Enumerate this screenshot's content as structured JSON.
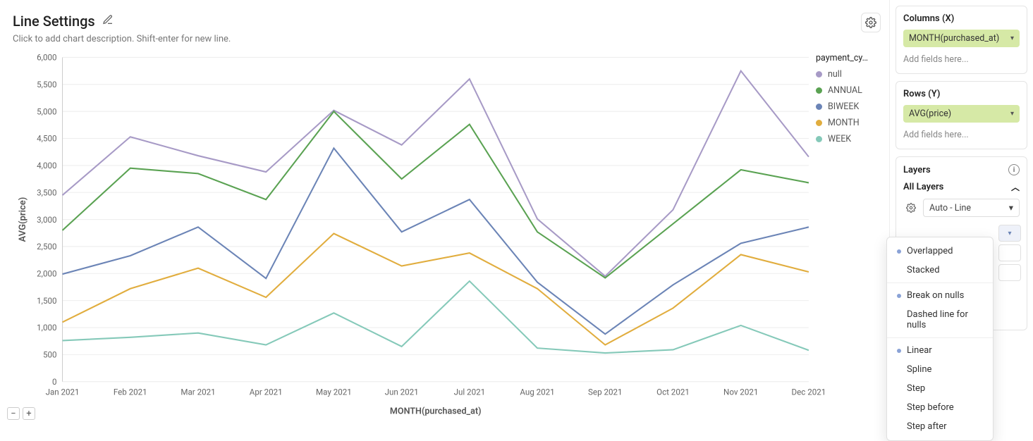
{
  "header": {
    "title": "Line Settings",
    "description": "Click to add chart description. Shift-enter for new line."
  },
  "chart": {
    "type": "line",
    "xlabel": "MONTH(purchased_at)",
    "ylabel": "AVG(price)",
    "categories": [
      "Jan 2021",
      "Feb 2021",
      "Mar 2021",
      "Apr 2021",
      "May 2021",
      "Jun 2021",
      "Jul 2021",
      "Aug 2021",
      "Sep 2021",
      "Oct 2021",
      "Nov 2021",
      "Dec 2021"
    ],
    "ylim": [
      0,
      6000
    ],
    "ytick_step": 500,
    "grid_color": "#eeeeee",
    "background_color": "#ffffff",
    "legend_title": "payment_cy…",
    "series": [
      {
        "name": "null",
        "color": "#a79ac6",
        "values": [
          3450,
          4530,
          4180,
          3880,
          5020,
          4380,
          5600,
          3010,
          1950,
          3180,
          5750,
          4160
        ]
      },
      {
        "name": "ANNUAL",
        "color": "#5aa252",
        "values": [
          2800,
          3950,
          3850,
          3370,
          5000,
          3750,
          4760,
          2770,
          1920,
          2920,
          3920,
          3680
        ]
      },
      {
        "name": "BIWEEK",
        "color": "#6b84b6",
        "values": [
          1990,
          2330,
          2860,
          1910,
          4320,
          2770,
          3370,
          1840,
          880,
          1790,
          2560,
          2860
        ]
      },
      {
        "name": "MONTH",
        "color": "#e1ad3e",
        "values": [
          1100,
          1720,
          2100,
          1560,
          2740,
          2140,
          2380,
          1720,
          680,
          1360,
          2350,
          2030
        ]
      },
      {
        "name": "WEEK",
        "color": "#85c9b9",
        "values": [
          760,
          820,
          900,
          680,
          1270,
          650,
          1860,
          620,
          530,
          590,
          1040,
          580
        ]
      }
    ]
  },
  "columns": {
    "title": "Columns (X)",
    "pill": "MONTH(purchased_at)",
    "placeholder": "Add fields here..."
  },
  "rows": {
    "title": "Rows (Y)",
    "pill": "AVG(price)",
    "placeholder": "Add fields here..."
  },
  "layers": {
    "title": "Layers",
    "subtitle": "All Layers",
    "select_value": "Auto - Line"
  },
  "dropdown": {
    "groups": [
      [
        "Overlapped",
        "Stacked"
      ],
      [
        "Break on nulls",
        "Dashed line for nulls"
      ],
      [
        "Linear",
        "Spline",
        "Step",
        "Step before",
        "Step after"
      ]
    ],
    "selected": [
      "Overlapped",
      "Break on nulls",
      "Linear"
    ]
  },
  "zoom": {
    "minus": "−",
    "plus": "+"
  }
}
